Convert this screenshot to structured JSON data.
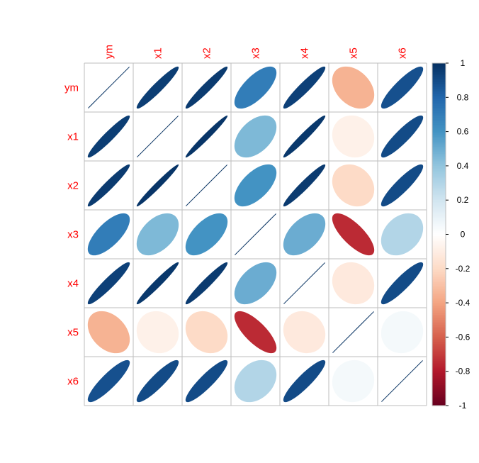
{
  "chart_data": {
    "type": "heatmap",
    "title": "",
    "variables": [
      "ym",
      "x1",
      "x2",
      "x3",
      "x4",
      "x5",
      "x6"
    ],
    "matrix": [
      [
        1.0,
        0.95,
        0.96,
        0.7,
        0.94,
        -0.35,
        0.88
      ],
      [
        0.95,
        1.0,
        0.98,
        0.45,
        0.97,
        -0.08,
        0.9
      ],
      [
        0.96,
        0.98,
        1.0,
        0.6,
        0.96,
        -0.2,
        0.9
      ],
      [
        0.7,
        0.45,
        0.6,
        1.0,
        0.5,
        -0.75,
        0.3
      ],
      [
        0.94,
        0.97,
        0.96,
        0.5,
        1.0,
        -0.12,
        0.9
      ],
      [
        -0.35,
        -0.08,
        -0.2,
        -0.75,
        -0.12,
        1.0,
        0.05
      ],
      [
        0.88,
        0.9,
        0.9,
        0.3,
        0.9,
        0.05,
        1.0
      ]
    ],
    "colorbar": {
      "ticks": [
        "1",
        "0.8",
        "0.6",
        "0.4",
        "0.2",
        "0",
        "-0.2",
        "-0.4",
        "-0.6",
        "-0.8",
        "-1"
      ],
      "range": [
        -1,
        1
      ],
      "colors": [
        "#67001F",
        "#B2182B",
        "#D6604D",
        "#F4A582",
        "#FDDBC7",
        "#FFFFFF",
        "#D1E5F0",
        "#92C5DE",
        "#4393C3",
        "#2166AC",
        "#053061"
      ]
    },
    "label_color": "#FF0000",
    "grid": true,
    "legend": "right"
  }
}
